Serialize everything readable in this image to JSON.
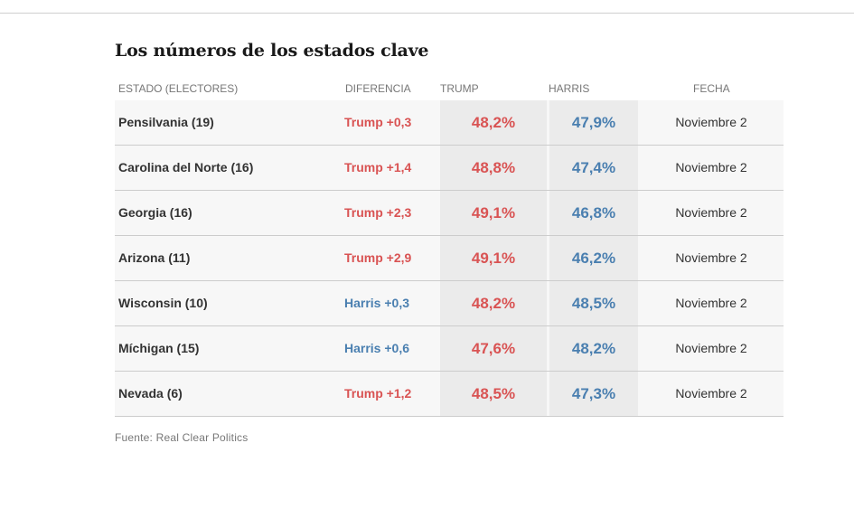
{
  "header": {
    "title": "Los números de los estados clave"
  },
  "colors": {
    "trump": "#d95353",
    "harris": "#4a7fb0"
  },
  "chart_data": {
    "type": "table",
    "title": "Los números de los estados clave",
    "columns": [
      "ESTADO (ELECTORES)",
      "DIFERENCIA",
      "TRUMP",
      "HARRIS",
      "FECHA"
    ],
    "rows": [
      {
        "state": "Pensilvania (19)",
        "diff": "Trump +0,3",
        "leader": "trump",
        "trump": "48,2%",
        "harris": "47,9%",
        "date": "Noviembre 2"
      },
      {
        "state": "Carolina del Norte (16)",
        "diff": "Trump +1,4",
        "leader": "trump",
        "trump": "48,8%",
        "harris": "47,4%",
        "date": "Noviembre 2"
      },
      {
        "state": "Georgia (16)",
        "diff": "Trump +2,3",
        "leader": "trump",
        "trump": "49,1%",
        "harris": "46,8%",
        "date": "Noviembre 2"
      },
      {
        "state": "Arizona (11)",
        "diff": "Trump +2,9",
        "leader": "trump",
        "trump": "49,1%",
        "harris": "46,2%",
        "date": "Noviembre 2"
      },
      {
        "state": "Wisconsin (10)",
        "diff": "Harris +0,3",
        "leader": "harris",
        "trump": "48,2%",
        "harris": "48,5%",
        "date": "Noviembre 2"
      },
      {
        "state": "Míchigan (15)",
        "diff": "Harris +0,6",
        "leader": "harris",
        "trump": "47,6%",
        "harris": "48,2%",
        "date": "Noviembre 2"
      },
      {
        "state": "Nevada (6)",
        "diff": "Trump +1,2",
        "leader": "trump",
        "trump": "48,5%",
        "harris": "47,3%",
        "date": "Noviembre 2"
      }
    ],
    "source": "Fuente: Real Clear Politics"
  }
}
